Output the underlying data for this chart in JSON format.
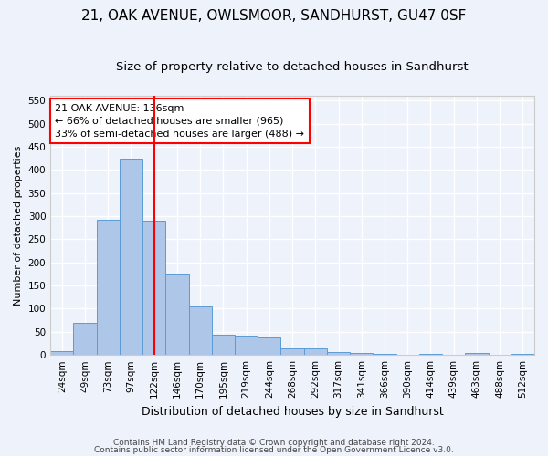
{
  "title": "21, OAK AVENUE, OWLSMOOR, SANDHURST, GU47 0SF",
  "subtitle": "Size of property relative to detached houses in Sandhurst",
  "xlabel": "Distribution of detached houses by size in Sandhurst",
  "ylabel": "Number of detached properties",
  "bar_color": "#aec6e8",
  "bar_edge_color": "#5b9bd5",
  "categories": [
    "24sqm",
    "49sqm",
    "73sqm",
    "97sqm",
    "122sqm",
    "146sqm",
    "170sqm",
    "195sqm",
    "219sqm",
    "244sqm",
    "268sqm",
    "292sqm",
    "317sqm",
    "341sqm",
    "366sqm",
    "390sqm",
    "414sqm",
    "439sqm",
    "463sqm",
    "488sqm",
    "512sqm"
  ],
  "values": [
    8,
    70,
    292,
    425,
    290,
    175,
    105,
    44,
    42,
    37,
    15,
    15,
    7,
    5,
    3,
    0,
    3,
    0,
    5,
    0,
    3
  ],
  "ylim": [
    0,
    560
  ],
  "yticks": [
    0,
    50,
    100,
    150,
    200,
    250,
    300,
    350,
    400,
    450,
    500,
    550
  ],
  "property_bin_index": 4,
  "vline_position": 4.5,
  "annotation_line1": "21 OAK AVENUE: 136sqm",
  "annotation_line2": "← 66% of detached houses are smaller (965)",
  "annotation_line3": "33% of semi-detached houses are larger (488) →",
  "footer1": "Contains HM Land Registry data © Crown copyright and database right 2024.",
  "footer2": "Contains public sector information licensed under the Open Government Licence v3.0.",
  "background_color": "#eef2fb",
  "grid_color": "#ffffff",
  "title_fontsize": 11,
  "subtitle_fontsize": 9.5,
  "ylabel_fontsize": 8,
  "xlabel_fontsize": 9,
  "tick_fontsize": 7.5,
  "annotation_fontsize": 8,
  "footer_fontsize": 6.5
}
